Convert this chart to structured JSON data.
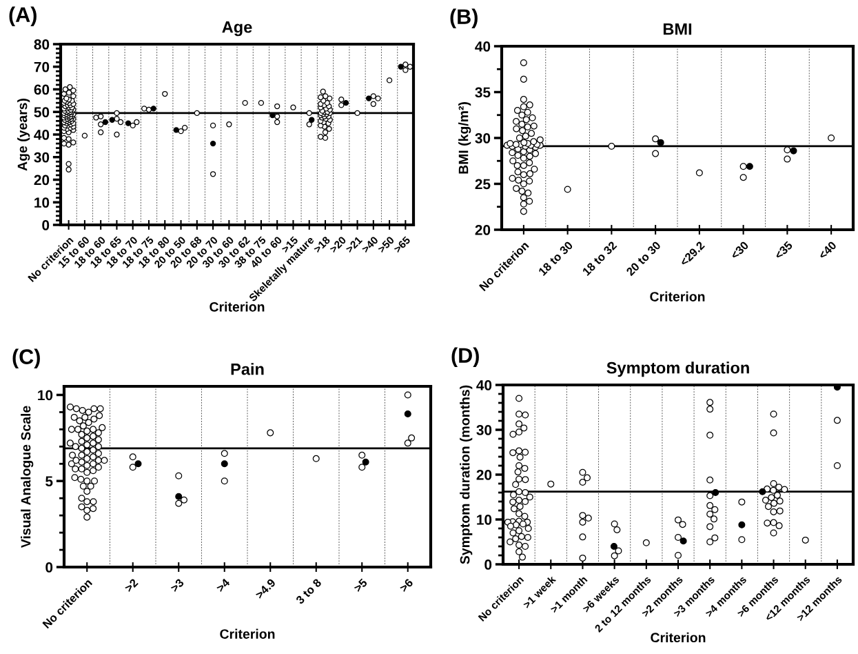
{
  "chart_data": [
    {
      "type": "scatter",
      "title": "Age",
      "xlabel": "Criterion",
      "ylabel": "Age (years)",
      "annotations": [
        "(A)"
      ],
      "marker": "circle",
      "grid": "x",
      "legend": false,
      "categories": [
        "No criterion",
        "15 to 60",
        "18 to 60",
        "18 to 65",
        "18 to 70",
        "18 to 75",
        "18 to 80",
        "20 to 50",
        "20 to 68",
        "20 to 70",
        "30 to 60",
        "30 to 62",
        "38 to 75",
        "40 to 60",
        ">15",
        "Skeletally mature",
        ">18",
        ">20",
        ">21",
        ">40",
        ">50",
        ">65"
      ],
      "ylim": [
        0,
        80
      ],
      "yticks": [
        0,
        10,
        20,
        30,
        40,
        50,
        60,
        70,
        80
      ],
      "ref_lines": [
        {
          "axis": "y",
          "value": 49.5,
          "color": "#000000",
          "line_style": "solid"
        }
      ],
      "series": [
        {
          "color": "#ffffff",
          "x": [
            "No criterion",
            "No criterion",
            "No criterion",
            "No criterion",
            "No criterion",
            "No criterion",
            "No criterion",
            "No criterion",
            "No criterion",
            "No criterion",
            "No criterion",
            "No criterion",
            "No criterion",
            "No criterion",
            "No criterion",
            "No criterion",
            "No criterion",
            "No criterion",
            "No criterion",
            "No criterion",
            "No criterion",
            "No criterion",
            "No criterion",
            "No criterion",
            "No criterion",
            "No criterion",
            "No criterion",
            "No criterion",
            "No criterion",
            "No criterion",
            "No criterion",
            "No criterion",
            "No criterion",
            "No criterion",
            "No criterion",
            "No criterion",
            "No criterion",
            "No criterion",
            "No criterion",
            "No criterion",
            "No criterion",
            "No criterion",
            "No criterion",
            "No criterion",
            "No criterion",
            "No criterion",
            "No criterion",
            "No criterion",
            "No criterion",
            "No criterion",
            "No criterion",
            "No criterion",
            "No criterion",
            "No criterion",
            "No criterion",
            "No criterion",
            "No criterion",
            "No criterion",
            "No criterion",
            "No criterion",
            "No criterion",
            "No criterion",
            "No criterion",
            "No criterion",
            "No criterion",
            "No criterion",
            "No criterion",
            "No criterion",
            "15 to 60",
            "18 to 60",
            "18 to 60",
            "18 to 60",
            "18 to 60",
            "18 to 65",
            "18 to 65",
            "18 to 65",
            "18 to 65",
            "18 to 70",
            "18 to 70",
            "18 to 75",
            "18 to 75",
            "18 to 80",
            "20 to 50",
            "20 to 50",
            "20 to 68",
            "20 to 70",
            "20 to 70",
            "30 to 60",
            "30 to 62",
            "38 to 75",
            "40 to 60",
            "40 to 60",
            "40 to 60",
            ">15",
            "Skeletally mature",
            "Skeletally mature",
            ">18",
            ">18",
            ">18",
            ">18",
            ">18",
            ">18",
            ">18",
            ">18",
            ">18",
            ">18",
            ">18",
            ">18",
            ">18",
            ">18",
            ">18",
            ">18",
            ">18",
            ">18",
            ">18",
            ">18",
            ">18",
            ">18",
            ">18",
            ">18",
            ">18",
            ">18",
            ">18",
            ">18",
            ">18",
            ">18",
            ">18",
            ">18",
            ">18",
            ">18",
            ">20",
            ">20",
            ">21",
            ">40",
            ">40",
            ">40",
            ">50",
            ">65",
            ">65",
            ">65"
          ],
          "values": [
            24.5,
            27,
            35.5,
            36,
            36.5,
            38,
            38.5,
            41,
            41.5,
            42,
            42.5,
            43,
            43,
            43.5,
            44,
            44,
            44.5,
            45,
            45,
            45.5,
            45.5,
            46,
            46,
            46.5,
            46.5,
            47,
            47,
            47,
            47.5,
            47.5,
            48,
            48,
            48,
            48.5,
            48.5,
            49,
            49,
            49,
            49.5,
            49.5,
            50,
            50,
            50,
            50.5,
            50.5,
            51,
            51,
            51.5,
            51.5,
            52,
            52,
            52.5,
            53,
            53,
            53.5,
            54,
            54,
            54.5,
            55,
            55,
            55.5,
            56,
            57,
            58,
            58.5,
            59.5,
            60,
            61,
            39.5,
            48,
            41,
            47.5,
            44.5,
            47,
            45.5,
            49.5,
            40,
            44,
            45.5,
            51,
            51.5,
            58,
            41.5,
            43,
            49.5,
            44,
            22.5,
            44.5,
            54,
            54,
            52.5,
            45.5,
            48,
            52,
            44.5,
            49.5,
            38.5,
            39,
            41,
            42.5,
            43.5,
            44,
            45,
            45.5,
            46,
            46.5,
            47,
            47.5,
            48,
            48,
            48.5,
            49,
            49,
            49.5,
            49.5,
            50,
            50,
            50.5,
            51,
            51.5,
            52,
            52.5,
            53,
            53.5,
            54,
            55,
            56,
            56.5,
            57,
            59,
            53,
            55.5,
            49.5,
            57,
            56,
            53.5,
            64,
            68.5,
            71,
            70
          ]
        },
        {
          "color": "#000000",
          "x": [
            "18 to 60",
            "18 to 65",
            "18 to 70",
            "18 to 75",
            "20 to 50",
            "20 to 70",
            "40 to 60",
            "Skeletally mature",
            ">20",
            ">40",
            ">65"
          ],
          "values": [
            45.5,
            46.5,
            45,
            51.5,
            42,
            36,
            48.5,
            46.5,
            54,
            56,
            70
          ]
        }
      ]
    },
    {
      "type": "scatter",
      "title": "BMI",
      "xlabel": "Criterion",
      "ylabel": "BMI (kg/m²)",
      "annotations": [
        "(B)"
      ],
      "marker": "circle",
      "grid": "x",
      "legend": false,
      "categories": [
        "No criterion",
        "18 to 30",
        "18 to 32",
        "20 to 30",
        "<29.2",
        "<30",
        "<35",
        "<40"
      ],
      "ylim": [
        20,
        40
      ],
      "yticks": [
        20,
        25,
        30,
        35,
        40
      ],
      "ref_lines": [
        {
          "axis": "y",
          "value": 29.1,
          "color": "#000000",
          "line_style": "solid"
        }
      ],
      "series": [
        {
          "color": "#ffffff",
          "x": [
            "No criterion",
            "No criterion",
            "No criterion",
            "No criterion",
            "No criterion",
            "No criterion",
            "No criterion",
            "No criterion",
            "No criterion",
            "No criterion",
            "No criterion",
            "No criterion",
            "No criterion",
            "No criterion",
            "No criterion",
            "No criterion",
            "No criterion",
            "No criterion",
            "No criterion",
            "No criterion",
            "No criterion",
            "No criterion",
            "No criterion",
            "No criterion",
            "No criterion",
            "No criterion",
            "No criterion",
            "No criterion",
            "No criterion",
            "No criterion",
            "No criterion",
            "No criterion",
            "No criterion",
            "No criterion",
            "No criterion",
            "No criterion",
            "No criterion",
            "No criterion",
            "No criterion",
            "No criterion",
            "No criterion",
            "No criterion",
            "No criterion",
            "No criterion",
            "No criterion",
            "No criterion",
            "No criterion",
            "No criterion",
            "No criterion",
            "No criterion",
            "No criterion",
            "No criterion",
            "No criterion",
            "No criterion",
            "No criterion",
            "No criterion",
            "No criterion",
            "No criterion",
            "No criterion",
            "No criterion",
            "18 to 30",
            "18 to 32",
            "20 to 30",
            "20 to 30",
            "<29.2",
            "<30",
            "<30",
            "<35",
            "<35",
            "<40"
          ],
          "values": [
            22.0,
            22.8,
            23.1,
            23.5,
            24.0,
            24.2,
            24.5,
            25.0,
            25.3,
            25.4,
            25.6,
            26.0,
            26.1,
            26.3,
            26.6,
            27.0,
            27.0,
            27.3,
            27.5,
            27.8,
            28.0,
            28.1,
            28.3,
            28.4,
            28.5,
            28.7,
            28.8,
            29.0,
            29.1,
            29.1,
            29.2,
            29.2,
            29.2,
            29.3,
            29.3,
            29.3,
            29.4,
            29.4,
            29.5,
            29.6,
            29.8,
            30.0,
            30.2,
            30.5,
            30.8,
            31.0,
            31.2,
            31.3,
            31.5,
            31.8,
            32.0,
            32.2,
            32.5,
            32.8,
            33.0,
            33.4,
            33.6,
            34.2,
            36.4,
            38.2,
            24.4,
            29.1,
            29.9,
            28.3,
            26.2,
            26.9,
            25.7,
            28.7,
            27.7,
            30.0
          ]
        },
        {
          "color": "#000000",
          "x": [
            "20 to 30",
            "<30",
            "<35"
          ],
          "values": [
            29.5,
            26.9,
            28.6
          ]
        }
      ]
    },
    {
      "type": "scatter",
      "title": "Pain",
      "xlabel": "Criterion",
      "ylabel": "Visual Analogue Scale",
      "annotations": [
        "(C)"
      ],
      "marker": "circle",
      "grid": "x",
      "legend": false,
      "categories": [
        "No criterion",
        ">2",
        ">3",
        ">4",
        ">4.9",
        "3 to 8",
        ">5",
        ">6"
      ],
      "ylim": [
        0,
        10.5
      ],
      "yticks": [
        0,
        5,
        10
      ],
      "ref_lines": [
        {
          "axis": "y",
          "value": 6.9,
          "color": "#000000",
          "line_style": "solid"
        }
      ],
      "series": [
        {
          "color": "#ffffff",
          "x": [
            "No criterion",
            "No criterion",
            "No criterion",
            "No criterion",
            "No criterion",
            "No criterion",
            "No criterion",
            "No criterion",
            "No criterion",
            "No criterion",
            "No criterion",
            "No criterion",
            "No criterion",
            "No criterion",
            "No criterion",
            "No criterion",
            "No criterion",
            "No criterion",
            "No criterion",
            "No criterion",
            "No criterion",
            "No criterion",
            "No criterion",
            "No criterion",
            "No criterion",
            "No criterion",
            "No criterion",
            "No criterion",
            "No criterion",
            "No criterion",
            "No criterion",
            "No criterion",
            "No criterion",
            "No criterion",
            "No criterion",
            "No criterion",
            "No criterion",
            "No criterion",
            "No criterion",
            "No criterion",
            "No criterion",
            "No criterion",
            "No criterion",
            "No criterion",
            "No criterion",
            "No criterion",
            "No criterion",
            "No criterion",
            "No criterion",
            "No criterion",
            "No criterion",
            "No criterion",
            "No criterion",
            "No criterion",
            "No criterion",
            "No criterion",
            "No criterion",
            "No criterion",
            "No criterion",
            "No criterion",
            "No criterion",
            "No criterion",
            "No criterion",
            ">2",
            ">2",
            ">3",
            ">3",
            ">3",
            ">4",
            ">4",
            ">4.9",
            "3 to 8",
            ">5",
            ">5",
            ">6",
            ">6",
            ">6"
          ],
          "values": [
            2.9,
            3.3,
            3.4,
            3.5,
            3.8,
            3.8,
            4.0,
            4.4,
            4.7,
            4.7,
            5.0,
            5.0,
            5.1,
            5.2,
            5.5,
            5.6,
            5.7,
            5.7,
            5.8,
            5.9,
            6.0,
            6.0,
            6.1,
            6.2,
            6.2,
            6.2,
            6.3,
            6.4,
            6.5,
            6.5,
            6.6,
            6.7,
            6.8,
            6.9,
            7.0,
            7.0,
            7.1,
            7.2,
            7.2,
            7.3,
            7.4,
            7.5,
            7.6,
            7.7,
            7.8,
            7.9,
            8.0,
            8.0,
            8.0,
            8.1,
            8.2,
            8.4,
            8.5,
            8.6,
            8.7,
            8.7,
            8.8,
            9.0,
            9.1,
            9.2,
            9.2,
            9.2,
            9.3,
            5.8,
            6.4,
            5.3,
            3.7,
            3.9,
            6.6,
            5.0,
            7.8,
            6.3,
            6.5,
            5.8,
            10.0,
            7.2,
            7.5
          ]
        },
        {
          "color": "#000000",
          "x": [
            ">2",
            ">3",
            ">4",
            ">5",
            ">6"
          ],
          "values": [
            6.0,
            4.1,
            6.0,
            6.1,
            8.9
          ]
        }
      ]
    },
    {
      "type": "scatter",
      "title": "Symptom duration",
      "xlabel": "Criterion",
      "ylabel": "Symptom duration (months)",
      "annotations": [
        "(D)"
      ],
      "marker": "circle",
      "grid": "x",
      "legend": false,
      "categories": [
        "No criterion",
        ">1 week",
        ">1 month",
        ">6 weeks",
        "2 to 12 months",
        ">2 months",
        ">3 months",
        ">4 months",
        ">6 months",
        "<12 months",
        ">12 months"
      ],
      "ylim": [
        0,
        40
      ],
      "yticks": [
        0,
        10,
        20,
        30,
        40
      ],
      "ref_lines": [
        {
          "axis": "y",
          "value": 16.2,
          "color": "#000000",
          "line_style": "solid"
        }
      ],
      "series": [
        {
          "color": "#ffffff",
          "x": [
            "No criterion",
            "No criterion",
            "No criterion",
            "No criterion",
            "No criterion",
            "No criterion",
            "No criterion",
            "No criterion",
            "No criterion",
            "No criterion",
            "No criterion",
            "No criterion",
            "No criterion",
            "No criterion",
            "No criterion",
            "No criterion",
            "No criterion",
            "No criterion",
            "No criterion",
            "No criterion",
            "No criterion",
            "No criterion",
            "No criterion",
            "No criterion",
            "No criterion",
            "No criterion",
            "No criterion",
            "No criterion",
            "No criterion",
            "No criterion",
            "No criterion",
            "No criterion",
            "No criterion",
            "No criterion",
            "No criterion",
            "No criterion",
            "No criterion",
            "No criterion",
            "No criterion",
            "No criterion",
            "No criterion",
            "No criterion",
            "No criterion",
            "No criterion",
            "No criterion",
            "No criterion",
            ">1 week",
            ">1 month",
            ">1 month",
            ">1 month",
            ">1 month",
            ">1 month",
            ">1 month",
            ">1 month",
            ">1 month",
            ">6 weeks",
            ">6 weeks",
            ">6 weeks",
            ">6 weeks",
            "2 to 12 months",
            ">2 months",
            ">2 months",
            ">2 months",
            ">2 months",
            ">3 months",
            ">3 months",
            ">3 months",
            ">3 months",
            ">3 months",
            ">3 months",
            ">3 months",
            ">3 months",
            ">3 months",
            ">3 months",
            ">3 months",
            ">3 months",
            ">4 months",
            ">4 months",
            ">6 months",
            ">6 months",
            ">6 months",
            ">6 months",
            ">6 months",
            ">6 months",
            ">6 months",
            ">6 months",
            ">6 months",
            ">6 months",
            ">6 months",
            ">6 months",
            ">6 months",
            ">6 months",
            ">6 months",
            ">6 months",
            ">6 months",
            ">6 months",
            ">6 months",
            "<12 months",
            ">12 months",
            ">12 months"
          ],
          "values": [
            37.0,
            33.5,
            33.3,
            31.3,
            30.4,
            29.5,
            29.0,
            25.3,
            25.0,
            24.9,
            23.9,
            22.0,
            21.4,
            20.6,
            19.0,
            18.9,
            17.8,
            16.2,
            16.0,
            15.5,
            15.0,
            14.3,
            14.0,
            13.9,
            12.9,
            12.4,
            11.3,
            10.7,
            9.6,
            9.5,
            9.4,
            9.4,
            9.0,
            8.8,
            8.5,
            8.0,
            7.5,
            7.0,
            6.2,
            6.0,
            5.7,
            5.0,
            4.3,
            4.0,
            2.8,
            1.6,
            17.9,
            20.5,
            18.3,
            19.3,
            10.9,
            9.4,
            10.3,
            6.1,
            1.4,
            9.0,
            7.7,
            1.9,
            3.0,
            4.8,
            9.9,
            6.0,
            2.0,
            8.9,
            36.1,
            34.6,
            28.8,
            18.8,
            15.3,
            13.1,
            11.2,
            12.2,
            10.1,
            8.4,
            5.0,
            5.9,
            13.9,
            5.5,
            33.5,
            29.3,
            18.0,
            17.2,
            16.5,
            16.8,
            15.4,
            14.9,
            14.1,
            13.6,
            14.3,
            12.9,
            11.7,
            11.9,
            9.3,
            8.6,
            9.2,
            7.0,
            16.7,
            5.4,
            32.1,
            22.0
          ]
        },
        {
          "color": "#000000",
          "x": [
            ">6 weeks",
            ">2 months",
            ">3 months",
            ">4 months",
            ">6 months",
            ">12 months"
          ],
          "values": [
            4.0,
            5.2,
            16.0,
            8.8,
            16.2,
            39.5
          ]
        }
      ]
    }
  ]
}
